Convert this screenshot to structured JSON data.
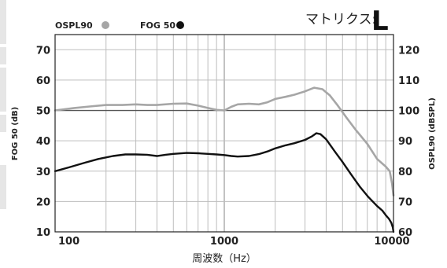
{
  "matrix": {
    "label": "マトリクス:",
    "value": "L"
  },
  "chart_data": {
    "type": "line",
    "xlabel": "周波数（Hz）",
    "ylabel_left": "FOG 50 (dB)",
    "ylabel_right": "OSPL90 (dBSPL)",
    "x_scale": "log",
    "xlim": [
      100,
      10000
    ],
    "ylim_left": [
      10,
      75
    ],
    "ylim_right": [
      60,
      125
    ],
    "x_ticks": [
      {
        "value": 100,
        "label": "100"
      },
      {
        "value": 1000,
        "label": "1000"
      },
      {
        "value": 10000,
        "label": "10000"
      }
    ],
    "y_ticks_left": [
      10,
      20,
      30,
      40,
      50,
      60,
      70
    ],
    "y_ticks_right": [
      60,
      70,
      80,
      90,
      100,
      110,
      120
    ],
    "grid": true,
    "legend_position": "top-left",
    "series": [
      {
        "name": "OSPL90",
        "axis": "right",
        "color": "#a6a6a6",
        "points": [
          [
            100,
            100
          ],
          [
            130,
            100.8
          ],
          [
            160,
            101.3
          ],
          [
            200,
            101.8
          ],
          [
            250,
            101.8
          ],
          [
            300,
            102
          ],
          [
            350,
            101.8
          ],
          [
            400,
            101.8
          ],
          [
            500,
            102.2
          ],
          [
            600,
            102.3
          ],
          [
            700,
            101.6
          ],
          [
            800,
            100.8
          ],
          [
            900,
            100.2
          ],
          [
            1000,
            100
          ],
          [
            1100,
            101.2
          ],
          [
            1200,
            102
          ],
          [
            1400,
            102.2
          ],
          [
            1600,
            102
          ],
          [
            1800,
            102.7
          ],
          [
            2000,
            103.8
          ],
          [
            2300,
            104.5
          ],
          [
            2600,
            105.2
          ],
          [
            3000,
            106.3
          ],
          [
            3400,
            107.5
          ],
          [
            3800,
            107
          ],
          [
            4200,
            105
          ],
          [
            4700,
            101.5
          ],
          [
            5300,
            97.5
          ],
          [
            6000,
            93.5
          ],
          [
            7000,
            89
          ],
          [
            8000,
            84
          ],
          [
            9000,
            81.5
          ],
          [
            9500,
            80
          ],
          [
            9800,
            76
          ],
          [
            10000,
            72
          ]
        ]
      },
      {
        "name": "FOG 50",
        "axis": "left",
        "color": "#111111",
        "points": [
          [
            100,
            30
          ],
          [
            120,
            31.2
          ],
          [
            150,
            32.8
          ],
          [
            180,
            34
          ],
          [
            220,
            35
          ],
          [
            260,
            35.5
          ],
          [
            300,
            35.5
          ],
          [
            350,
            35.4
          ],
          [
            400,
            35
          ],
          [
            450,
            35.4
          ],
          [
            500,
            35.7
          ],
          [
            600,
            36
          ],
          [
            700,
            35.9
          ],
          [
            800,
            35.7
          ],
          [
            900,
            35.5
          ],
          [
            1000,
            35.3
          ],
          [
            1100,
            35
          ],
          [
            1200,
            34.8
          ],
          [
            1400,
            35
          ],
          [
            1600,
            35.6
          ],
          [
            1800,
            36.5
          ],
          [
            2000,
            37.5
          ],
          [
            2300,
            38.5
          ],
          [
            2600,
            39.2
          ],
          [
            3000,
            40.3
          ],
          [
            3300,
            41.5
          ],
          [
            3500,
            42.5
          ],
          [
            3700,
            42.2
          ],
          [
            4000,
            40.5
          ],
          [
            4500,
            36.5
          ],
          [
            5000,
            33
          ],
          [
            5600,
            29
          ],
          [
            6300,
            25
          ],
          [
            7100,
            21.5
          ],
          [
            8000,
            18.5
          ],
          [
            8600,
            17
          ],
          [
            9000,
            15.5
          ],
          [
            9400,
            14.3
          ],
          [
            9700,
            13
          ],
          [
            9900,
            11.5
          ],
          [
            10000,
            10
          ]
        ]
      }
    ]
  }
}
